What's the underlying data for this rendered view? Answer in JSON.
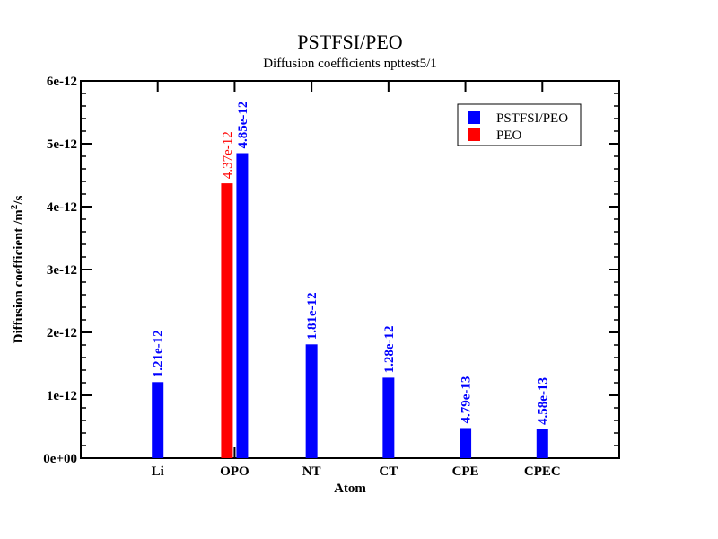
{
  "chart_data": {
    "type": "bar",
    "title": "PSTFSI/PEO",
    "subtitle": "Diffusion coefficients npttest5/1",
    "xlabel": "Atom",
    "ylabel": "Diffusion coefficient /m",
    "ylabel_superscript": "2",
    "ylabel_suffix": "/s",
    "categories": [
      "Li",
      "OPO",
      "NT",
      "CT",
      "CPE",
      "CPEC"
    ],
    "ylim": [
      0,
      6e-12
    ],
    "yticks": [
      {
        "value": 0,
        "label": "0e+00"
      },
      {
        "value": 1e-12,
        "label": "1e-12"
      },
      {
        "value": 2e-12,
        "label": "2e-12"
      },
      {
        "value": 3e-12,
        "label": "3e-12"
      },
      {
        "value": 4e-12,
        "label": "4e-12"
      },
      {
        "value": 5e-12,
        "label": "5e-12"
      },
      {
        "value": 6e-12,
        "label": "6e-12"
      }
    ],
    "series": [
      {
        "name": "PSTFSI/PEO",
        "color": "#0000ff",
        "values": [
          1.21e-12,
          4.85e-12,
          1.81e-12,
          1.28e-12,
          4.79e-13,
          4.58e-13
        ],
        "labels": [
          "1.21e-12",
          "4.85e-12",
          "1.81e-12",
          "1.28e-12",
          "4.79e-13",
          "4.58e-13"
        ]
      },
      {
        "name": "PEO",
        "color": "#ff0000",
        "values": [
          null,
          4.37e-12,
          null,
          null,
          null,
          null
        ],
        "labels": [
          null,
          "4.37e-12",
          null,
          null,
          null,
          null
        ]
      }
    ],
    "legend_position": "top-right",
    "grid": false
  }
}
